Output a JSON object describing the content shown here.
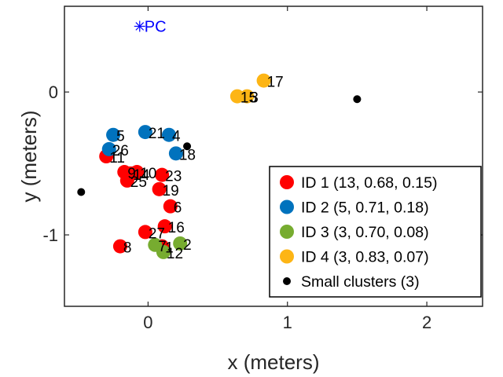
{
  "chart_data": {
    "type": "scatter",
    "xlabel": "x (meters)",
    "ylabel": "y (meters)",
    "xlim": [
      -0.6,
      2.4
    ],
    "ylim": [
      -1.5,
      0.6
    ],
    "xticks": [
      0,
      1,
      2
    ],
    "yticks": [
      -1,
      0
    ],
    "grid": false,
    "legend_position": "bottom-right",
    "series": [
      {
        "name": "ID 1 (13, 0.68, 0.15)",
        "color": "#ff0000",
        "points": [
          {
            "x": 0.1,
            "y": -1.08,
            "label": "1"
          },
          {
            "x": 0.16,
            "y": -0.8,
            "label": "6"
          },
          {
            "x": -0.2,
            "y": -1.08,
            "label": "8"
          },
          {
            "x": -0.17,
            "y": -0.56,
            "label": "9"
          },
          {
            "x": -0.08,
            "y": -0.56,
            "label": "10"
          },
          {
            "x": -0.3,
            "y": -0.45,
            "label": "11"
          },
          {
            "x": -0.13,
            "y": -0.57,
            "label": "14"
          },
          {
            "x": 0.12,
            "y": -0.94,
            "label": "16"
          },
          {
            "x": 0.08,
            "y": -0.68,
            "label": "19"
          },
          {
            "x": 0.1,
            "y": -0.58,
            "label": "23"
          },
          {
            "x": -0.15,
            "y": -0.62,
            "label": "25"
          },
          {
            "x": -0.02,
            "y": -0.98,
            "label": "27"
          },
          {
            "x": -0.11,
            "y": -0.57,
            "label": ""
          }
        ]
      },
      {
        "name": "ID 2 (5, 0.71, 0.18)",
        "color": "#0072bd",
        "points": [
          {
            "x": 0.2,
            "y": -0.43,
            "label": "18"
          },
          {
            "x": -0.02,
            "y": -0.28,
            "label": "21"
          },
          {
            "x": 0.15,
            "y": -0.3,
            "label": "4"
          },
          {
            "x": -0.25,
            "y": -0.3,
            "label": "5"
          },
          {
            "x": -0.28,
            "y": -0.4,
            "label": "26"
          }
        ]
      },
      {
        "name": "ID 3 (3, 0.70, 0.08)",
        "color": "#77ac30",
        "points": [
          {
            "x": 0.23,
            "y": -1.06,
            "label": "2"
          },
          {
            "x": 0.05,
            "y": -1.07,
            "label": "7"
          },
          {
            "x": 0.11,
            "y": -1.12,
            "label": "12"
          }
        ]
      },
      {
        "name": "ID 4 (3, 0.83, 0.07)",
        "color": "#fdb515",
        "points": [
          {
            "x": 0.83,
            "y": 0.08,
            "label": "17"
          },
          {
            "x": 0.64,
            "y": -0.03,
            "label": "15"
          },
          {
            "x": 0.71,
            "y": -0.03,
            "label": "3"
          }
        ]
      },
      {
        "name": "Small clusters (3)",
        "color": "#000000",
        "marker": "small-dot",
        "points": [
          {
            "x": -0.48,
            "y": -0.7,
            "label": ""
          },
          {
            "x": 0.28,
            "y": -0.38,
            "label": ""
          },
          {
            "x": 1.5,
            "y": -0.05,
            "label": ""
          }
        ]
      }
    ],
    "annotations": [
      {
        "type": "star-marker",
        "x": -0.06,
        "y": 0.46,
        "text": "PC",
        "color": "#0000ff"
      }
    ]
  }
}
